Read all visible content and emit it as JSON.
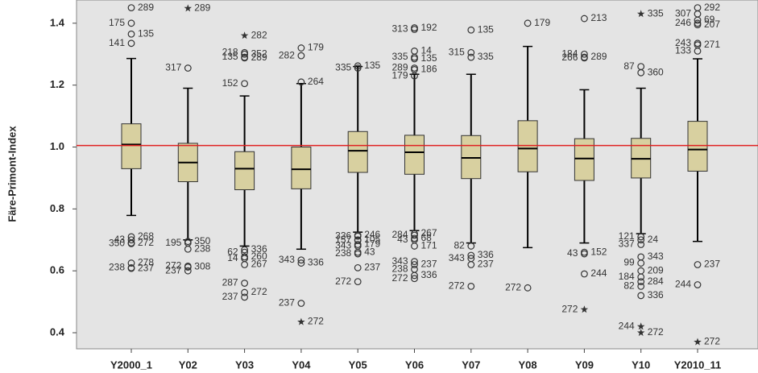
{
  "chart_data": {
    "type": "boxplot",
    "y_label": "Färe-Primont-Index",
    "categories": [
      "Y2000_1",
      "Y02",
      "Y03",
      "Y04",
      "Y05",
      "Y06",
      "Y07",
      "Y08",
      "Y09",
      "Y10",
      "Y2010_11"
    ],
    "ylim": [
      0.348,
      1.475
    ],
    "yticks": [
      0.4,
      0.6,
      0.8,
      {
        "value": 1,
        "label": "1.0"
      },
      1.2,
      1.4
    ],
    "box_color": "#d8d0a0",
    "ref_line": {
      "value": 1.005,
      "color": "#e02020"
    },
    "boxes": [
      {
        "low": 0.779,
        "q1": 0.93,
        "median": 1.008,
        "q3": 1.075,
        "high": 1.286,
        "outliers": [
          {
            "value": 1.45,
            "label": "289"
          },
          {
            "value": 1.4,
            "label": "175"
          },
          {
            "value": 1.365,
            "label": "135"
          },
          {
            "value": 1.335,
            "label": "141"
          },
          {
            "value": 0.71,
            "label": "268"
          },
          {
            "value": 0.7,
            "label": "43"
          },
          {
            "value": 0.69,
            "label": "272"
          },
          {
            "value": 0.688,
            "label": "350"
          },
          {
            "value": 0.625,
            "label": "278"
          },
          {
            "value": 0.61,
            "label": "238"
          },
          {
            "value": 0.608,
            "label": "237"
          }
        ]
      },
      {
        "low": 0.7,
        "q1": 0.888,
        "median": 0.95,
        "q3": 1.012,
        "high": 1.19,
        "outliers": [
          {
            "value": 1.448,
            "label": "289",
            "marker": "star"
          },
          {
            "value": 1.255,
            "label": "317"
          },
          {
            "value": 0.695,
            "label": "350"
          },
          {
            "value": 0.69,
            "label": "195"
          },
          {
            "value": 0.67,
            "label": "238"
          },
          {
            "value": 0.615,
            "label": "272"
          },
          {
            "value": 0.612,
            "label": "308"
          },
          {
            "value": 0.6,
            "label": "237"
          }
        ]
      },
      {
        "low": 0.68,
        "q1": 0.862,
        "median": 0.93,
        "q3": 0.985,
        "high": 1.165,
        "outliers": [
          {
            "value": 1.36,
            "label": "282",
            "marker": "star"
          },
          {
            "value": 1.305,
            "label": "218"
          },
          {
            "value": 1.3,
            "label": "352"
          },
          {
            "value": 1.29,
            "label": "135"
          },
          {
            "value": 1.288,
            "label": "289"
          },
          {
            "value": 1.205,
            "label": "152"
          },
          {
            "value": 0.668,
            "label": "336"
          },
          {
            "value": 0.66,
            "label": "62"
          },
          {
            "value": 0.645,
            "label": "260"
          },
          {
            "value": 0.64,
            "label": "14"
          },
          {
            "value": 0.62,
            "label": "267"
          },
          {
            "value": 0.56,
            "label": "287"
          },
          {
            "value": 0.53,
            "label": "272"
          },
          {
            "value": 0.515,
            "label": "237"
          }
        ]
      },
      {
        "low": 0.67,
        "q1": 0.865,
        "median": 0.928,
        "q3": 1.0,
        "high": 1.205,
        "outliers": [
          {
            "value": 1.32,
            "label": "179"
          },
          {
            "value": 1.295,
            "label": "282"
          },
          {
            "value": 1.21,
            "label": "264"
          },
          {
            "value": 0.635,
            "label": "343"
          },
          {
            "value": 0.625,
            "label": "336"
          },
          {
            "value": 0.495,
            "label": "237"
          },
          {
            "value": 0.435,
            "label": "272",
            "marker": "star"
          }
        ]
      },
      {
        "low": 0.725,
        "q1": 0.918,
        "median": 0.988,
        "q3": 1.05,
        "high": 1.26,
        "outliers": [
          {
            "value": 1.262,
            "label": "135"
          },
          {
            "value": 1.255,
            "label": "335"
          },
          {
            "value": 0.715,
            "label": "246"
          },
          {
            "value": 0.712,
            "label": "336"
          },
          {
            "value": 0.7,
            "label": "105"
          },
          {
            "value": 0.698,
            "label": "157"
          },
          {
            "value": 0.685,
            "label": "179"
          },
          {
            "value": 0.68,
            "label": "343"
          },
          {
            "value": 0.66,
            "label": "43"
          },
          {
            "value": 0.655,
            "label": "238"
          },
          {
            "value": 0.61,
            "label": "237"
          },
          {
            "value": 0.565,
            "label": "272"
          }
        ]
      },
      {
        "low": 0.73,
        "q1": 0.912,
        "median": 0.983,
        "q3": 1.038,
        "high": 1.235,
        "outliers": [
          {
            "value": 1.385,
            "label": "192"
          },
          {
            "value": 1.38,
            "label": "313"
          },
          {
            "value": 1.31,
            "label": "14"
          },
          {
            "value": 1.29,
            "label": "335"
          },
          {
            "value": 1.285,
            "label": "135"
          },
          {
            "value": 1.255,
            "label": "289"
          },
          {
            "value": 1.25,
            "label": "186"
          },
          {
            "value": 1.23,
            "label": "179"
          },
          {
            "value": 0.72,
            "label": "267"
          },
          {
            "value": 0.715,
            "label": "284"
          },
          {
            "value": 0.705,
            "label": "68"
          },
          {
            "value": 0.7,
            "label": "43"
          },
          {
            "value": 0.68,
            "label": "171"
          },
          {
            "value": 0.63,
            "label": "343"
          },
          {
            "value": 0.62,
            "label": "237"
          },
          {
            "value": 0.605,
            "label": "238"
          },
          {
            "value": 0.585,
            "label": "336"
          },
          {
            "value": 0.575,
            "label": "272"
          }
        ]
      },
      {
        "low": 0.69,
        "q1": 0.898,
        "median": 0.965,
        "q3": 1.037,
        "high": 1.235,
        "outliers": [
          {
            "value": 1.378,
            "label": "135"
          },
          {
            "value": 1.305,
            "label": "315"
          },
          {
            "value": 1.29,
            "label": "335"
          },
          {
            "value": 0.68,
            "label": "82"
          },
          {
            "value": 0.65,
            "label": "336"
          },
          {
            "value": 0.64,
            "label": "343"
          },
          {
            "value": 0.62,
            "label": "237"
          },
          {
            "value": 0.55,
            "label": "272"
          }
        ]
      },
      {
        "low": 0.675,
        "q1": 0.92,
        "median": 0.995,
        "q3": 1.085,
        "high": 1.325,
        "outliers": [
          {
            "value": 1.4,
            "label": "179"
          },
          {
            "value": 0.545,
            "label": "272"
          }
        ]
      },
      {
        "low": 0.69,
        "q1": 0.892,
        "median": 0.963,
        "q3": 1.027,
        "high": 1.185,
        "outliers": [
          {
            "value": 1.415,
            "label": "213"
          },
          {
            "value": 1.3,
            "label": "184"
          },
          {
            "value": 1.29,
            "label": "289"
          },
          {
            "value": 1.288,
            "label": "266"
          },
          {
            "value": 0.66,
            "label": "152"
          },
          {
            "value": 0.655,
            "label": "43"
          },
          {
            "value": 0.59,
            "label": "244"
          },
          {
            "value": 0.475,
            "label": "272",
            "marker": "star"
          }
        ]
      },
      {
        "low": 0.72,
        "q1": 0.9,
        "median": 0.962,
        "q3": 1.028,
        "high": 1.19,
        "outliers": [
          {
            "value": 1.43,
            "label": "335",
            "marker": "star"
          },
          {
            "value": 1.26,
            "label": "87"
          },
          {
            "value": 1.24,
            "label": "360"
          },
          {
            "value": 0.71,
            "label": "121"
          },
          {
            "value": 0.7,
            "label": "24"
          },
          {
            "value": 0.685,
            "label": "337"
          },
          {
            "value": 0.645,
            "label": "343"
          },
          {
            "value": 0.625,
            "label": "99"
          },
          {
            "value": 0.6,
            "label": "209"
          },
          {
            "value": 0.58,
            "label": "184"
          },
          {
            "value": 0.565,
            "label": "284"
          },
          {
            "value": 0.55,
            "label": "82"
          },
          {
            "value": 0.52,
            "label": "336"
          },
          {
            "value": 0.42,
            "label": "244",
            "marker": "star"
          },
          {
            "value": 0.4,
            "label": "272",
            "marker": "star"
          }
        ]
      },
      {
        "low": 0.695,
        "q1": 0.922,
        "median": 0.992,
        "q3": 1.083,
        "high": 1.285,
        "outliers": [
          {
            "value": 1.45,
            "label": "292"
          },
          {
            "value": 1.43,
            "label": "307"
          },
          {
            "value": 1.41,
            "label": "69"
          },
          {
            "value": 1.4,
            "label": "246"
          },
          {
            "value": 1.395,
            "label": "207"
          },
          {
            "value": 1.335,
            "label": "243"
          },
          {
            "value": 1.33,
            "label": "271"
          },
          {
            "value": 1.31,
            "label": "133"
          },
          {
            "value": 0.62,
            "label": "237"
          },
          {
            "value": 0.555,
            "label": "244"
          },
          {
            "value": 0.37,
            "label": "272",
            "marker": "star"
          }
        ]
      }
    ]
  }
}
